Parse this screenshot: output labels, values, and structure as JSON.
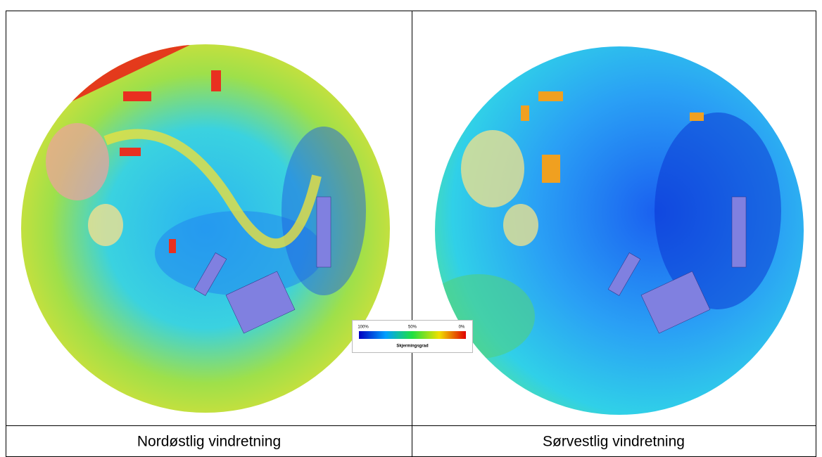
{
  "figures": [
    {
      "caption": "Nordøstlig vindretning"
    },
    {
      "caption": "Sørvestlig vindretning"
    }
  ],
  "legend": {
    "labels": [
      "100%",
      "50%",
      "0%"
    ],
    "title": "Skjermingsgrad"
  }
}
